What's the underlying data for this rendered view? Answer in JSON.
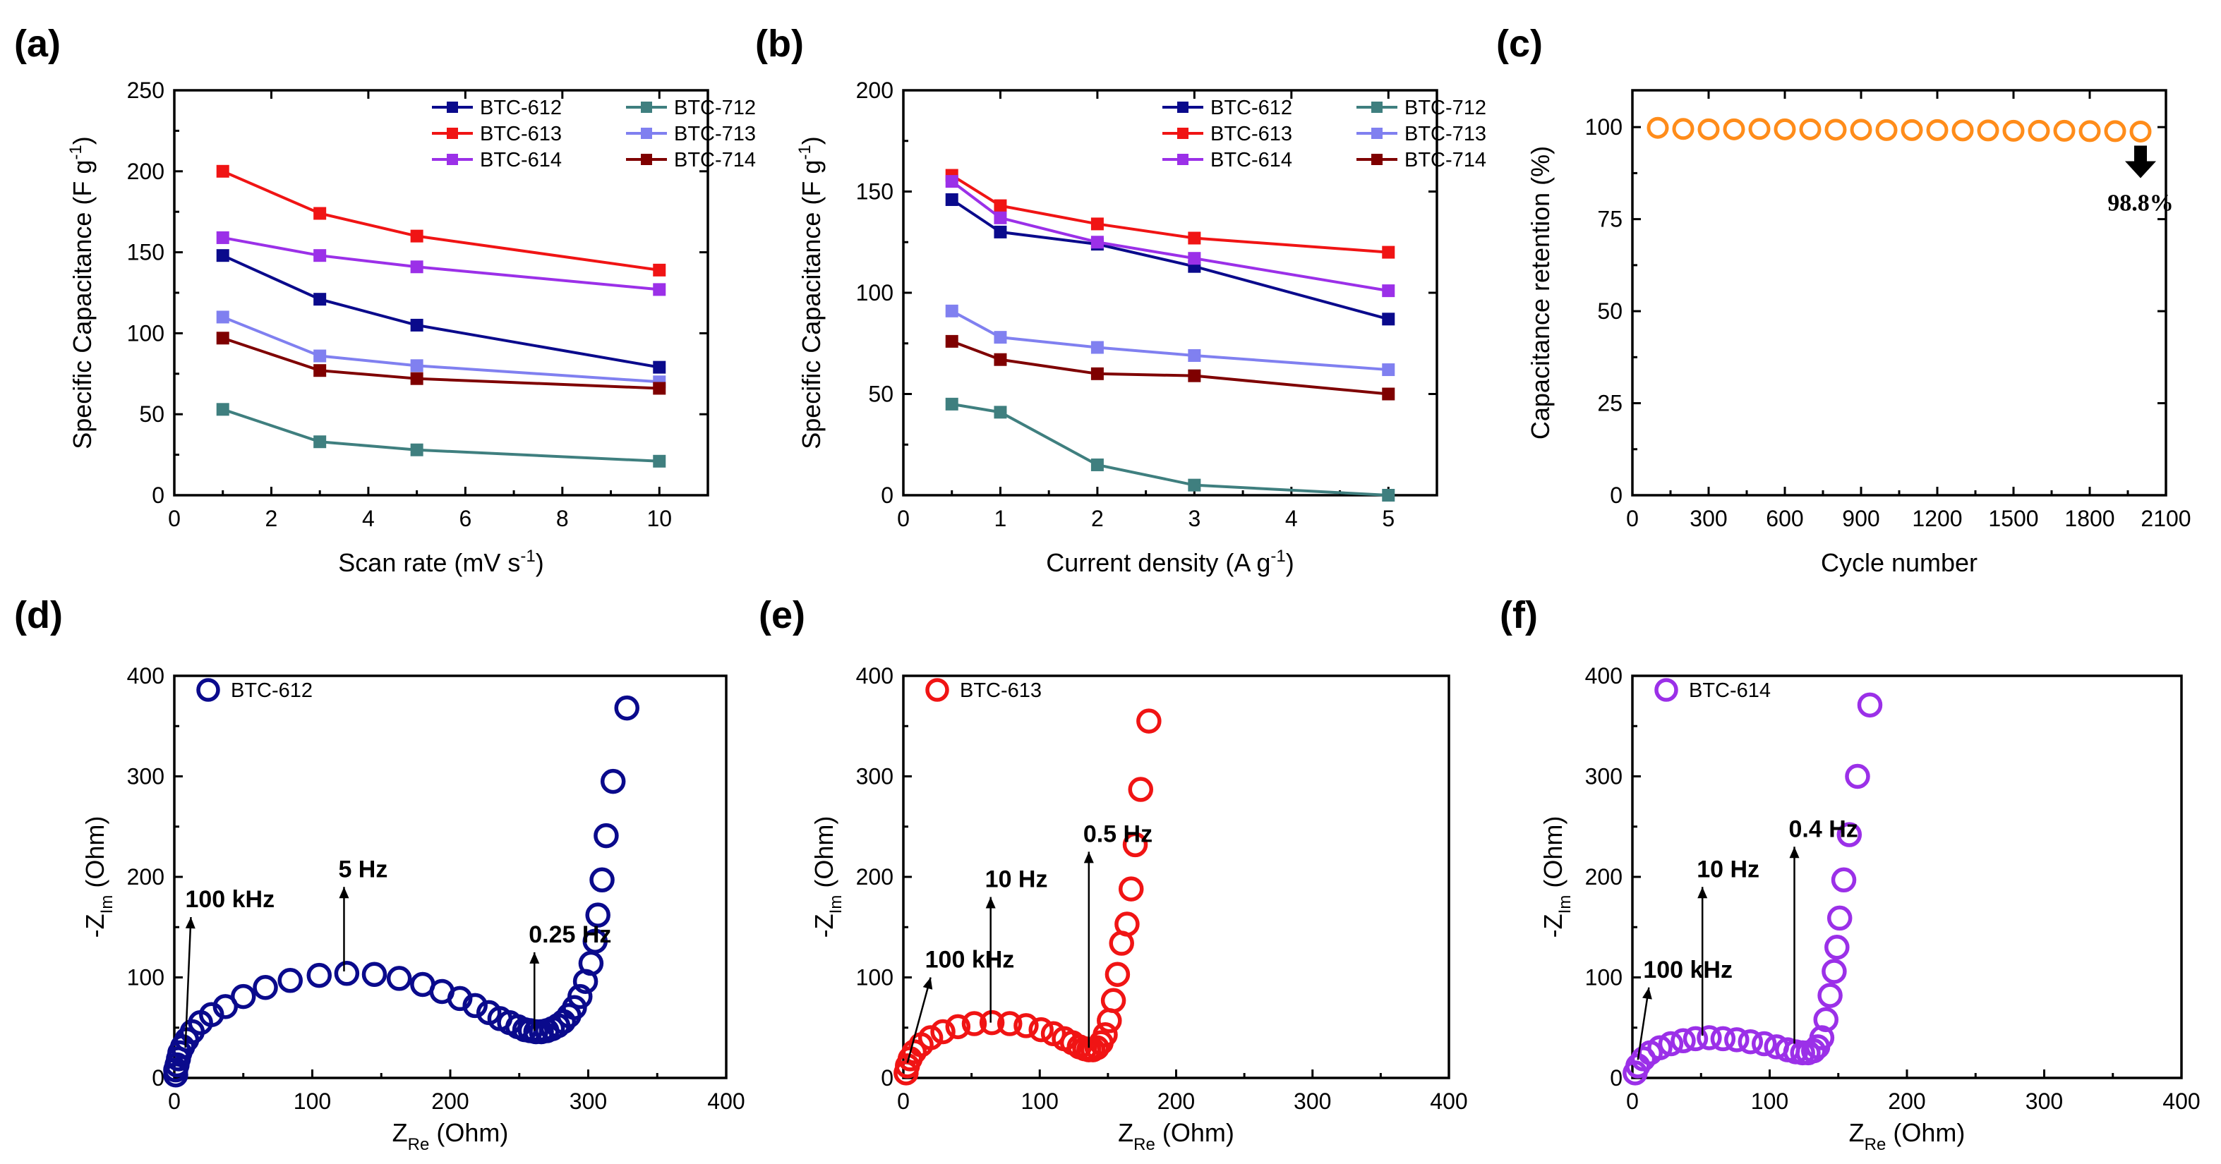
{
  "colors": {
    "BTC-612": "#0a0a8c",
    "BTC-613": "#f01414",
    "BTC-614": "#9b30e8",
    "BTC-712": "#3f7f7f",
    "BTC-713": "#8080f0",
    "BTC-714": "#7f0000",
    "retention": "#ff8c1a"
  },
  "chart_data": [
    {
      "panel": "(a)",
      "type": "line",
      "xlabel": "Scan rate (mV s",
      "xlabel_sup": "-1",
      "xlabel_end": ")",
      "ylabel": "Specific Capacitance (F g",
      "ylabel_sup": "-1",
      "ylabel_end": ")",
      "xlim": [
        0,
        11
      ],
      "ylim": [
        0,
        250
      ],
      "xticks": [
        0,
        2,
        4,
        6,
        8,
        10
      ],
      "yticks": [
        0,
        50,
        100,
        150,
        200,
        250
      ],
      "x": [
        1,
        3,
        5,
        10
      ],
      "series": [
        {
          "name": "BTC-612",
          "values": [
            148,
            121,
            105,
            79
          ]
        },
        {
          "name": "BTC-613",
          "values": [
            200,
            174,
            160,
            139
          ]
        },
        {
          "name": "BTC-614",
          "values": [
            159,
            148,
            141,
            127
          ]
        },
        {
          "name": "BTC-712",
          "values": [
            53,
            33,
            28,
            21
          ]
        },
        {
          "name": "BTC-713",
          "values": [
            110,
            86,
            80,
            70
          ]
        },
        {
          "name": "BTC-714",
          "values": [
            97,
            77,
            72,
            66
          ]
        }
      ]
    },
    {
      "panel": "(b)",
      "type": "line",
      "xlabel": "Current density (A g",
      "xlabel_sup": "-1",
      "xlabel_end": ")",
      "ylabel": "Specific Capacitance (F g",
      "ylabel_sup": "-1",
      "ylabel_end": ")",
      "xlim": [
        0,
        5.5
      ],
      "ylim": [
        0,
        200
      ],
      "xticks": [
        0,
        1,
        2,
        3,
        4,
        5
      ],
      "yticks": [
        0,
        50,
        100,
        150,
        200
      ],
      "x": [
        0.5,
        1,
        2,
        3,
        5
      ],
      "series": [
        {
          "name": "BTC-612",
          "values": [
            146,
            130,
            124,
            113,
            87
          ]
        },
        {
          "name": "BTC-613",
          "values": [
            158,
            143,
            134,
            127,
            120
          ]
        },
        {
          "name": "BTC-614",
          "values": [
            155,
            137,
            125,
            117,
            101
          ]
        },
        {
          "name": "BTC-712",
          "values": [
            45,
            41,
            15,
            5,
            0
          ]
        },
        {
          "name": "BTC-713",
          "values": [
            91,
            78,
            73,
            69,
            62
          ]
        },
        {
          "name": "BTC-714",
          "values": [
            76,
            67,
            60,
            59,
            50
          ]
        }
      ]
    },
    {
      "panel": "(c)",
      "type": "scatter",
      "xlabel": "Cycle number",
      "ylabel": "Capacitance retention (%)",
      "xlim": [
        0,
        2100
      ],
      "ylim": [
        0,
        110
      ],
      "xticks": [
        0,
        300,
        600,
        900,
        1200,
        1500,
        1800,
        2100
      ],
      "yticks": [
        0,
        25,
        50,
        75,
        100
      ],
      "x": [
        100,
        200,
        300,
        400,
        500,
        600,
        700,
        800,
        900,
        1000,
        1100,
        1200,
        1300,
        1400,
        1500,
        1600,
        1700,
        1800,
        1900,
        2000
      ],
      "values": [
        99.8,
        99.5,
        99.4,
        99.4,
        99.5,
        99.4,
        99.4,
        99.3,
        99.3,
        99.2,
        99.2,
        99.2,
        99.1,
        99.1,
        99.0,
        99.0,
        99.0,
        98.9,
        98.9,
        98.8
      ],
      "annotation": "98.8%"
    },
    {
      "panel": "(d)",
      "type": "scatter",
      "legend": "BTC-612",
      "xlim": [
        0,
        400
      ],
      "ylim": [
        0,
        400
      ],
      "xticks": [
        0,
        100,
        200,
        300,
        400
      ],
      "yticks": [
        0,
        100,
        200,
        300,
        400
      ],
      "points": [
        [
          1,
          3
        ],
        [
          1,
          8
        ],
        [
          2,
          13
        ],
        [
          3,
          19
        ],
        [
          4,
          25
        ],
        [
          6,
          31
        ],
        [
          9,
          38
        ],
        [
          13,
          46
        ],
        [
          19,
          55
        ],
        [
          27,
          63
        ],
        [
          37,
          71
        ],
        [
          50,
          81
        ],
        [
          66,
          90
        ],
        [
          84,
          97
        ],
        [
          105,
          102
        ],
        [
          125,
          104
        ],
        [
          145,
          103
        ],
        [
          163,
          99
        ],
        [
          180,
          93
        ],
        [
          194,
          86
        ],
        [
          207,
          79
        ],
        [
          218,
          72
        ],
        [
          228,
          65
        ],
        [
          236,
          59
        ],
        [
          243,
          55
        ],
        [
          249,
          51
        ],
        [
          254,
          48
        ],
        [
          258,
          47
        ],
        [
          262,
          46
        ],
        [
          266,
          46
        ],
        [
          270,
          47
        ],
        [
          274,
          49
        ],
        [
          278,
          52
        ],
        [
          282,
          56
        ],
        [
          286,
          62
        ],
        [
          290,
          70
        ],
        [
          294,
          81
        ],
        [
          298,
          96
        ],
        [
          302,
          114
        ],
        [
          305,
          136
        ],
        [
          307,
          162
        ],
        [
          310,
          197
        ],
        [
          313,
          241
        ],
        [
          318,
          295
        ],
        [
          328,
          368
        ]
      ],
      "annotations": [
        {
          "text": "100 kHz",
          "x": 8,
          "y": 30,
          "tx": 12,
          "ty": 160
        },
        {
          "text": "5 Hz",
          "x": 123,
          "y": 106,
          "tx": 123,
          "ty": 190
        },
        {
          "text": "0.25 Hz",
          "x": 261,
          "y": 47,
          "tx": 261,
          "ty": 125
        }
      ]
    },
    {
      "panel": "(e)",
      "type": "scatter",
      "legend": "BTC-613",
      "xlim": [
        0,
        400
      ],
      "ylim": [
        0,
        400
      ],
      "xticks": [
        0,
        100,
        200,
        300,
        400
      ],
      "yticks": [
        0,
        100,
        200,
        300,
        400
      ],
      "points": [
        [
          2,
          5
        ],
        [
          3,
          12
        ],
        [
          5,
          19
        ],
        [
          8,
          26
        ],
        [
          13,
          33
        ],
        [
          20,
          40
        ],
        [
          29,
          46
        ],
        [
          40,
          51
        ],
        [
          52,
          54
        ],
        [
          65,
          55
        ],
        [
          78,
          54
        ],
        [
          90,
          52
        ],
        [
          101,
          48
        ],
        [
          110,
          44
        ],
        [
          118,
          39
        ],
        [
          124,
          35
        ],
        [
          129,
          31
        ],
        [
          133,
          29
        ],
        [
          136,
          28
        ],
        [
          139,
          28
        ],
        [
          142,
          30
        ],
        [
          145,
          35
        ],
        [
          148,
          43
        ],
        [
          151,
          57
        ],
        [
          154,
          77
        ],
        [
          157,
          103
        ],
        [
          160,
          134
        ],
        [
          164,
          153
        ],
        [
          167,
          188
        ],
        [
          170,
          232
        ],
        [
          174,
          287
        ],
        [
          180,
          355
        ]
      ],
      "annotations": [
        {
          "text": "100 kHz",
          "x": 3,
          "y": 15,
          "tx": 20,
          "ty": 100
        },
        {
          "text": "10 Hz",
          "x": 64,
          "y": 55,
          "tx": 64,
          "ty": 180
        },
        {
          "text": "0.5 Hz",
          "x": 136,
          "y": 30,
          "tx": 136,
          "ty": 225
        }
      ]
    },
    {
      "panel": "(f)",
      "type": "scatter",
      "legend": "BTC-614",
      "xlim": [
        0,
        400
      ],
      "ylim": [
        0,
        400
      ],
      "xticks": [
        0,
        100,
        200,
        300,
        400
      ],
      "yticks": [
        0,
        100,
        200,
        300,
        400
      ],
      "points": [
        [
          2,
          5
        ],
        [
          4,
          12
        ],
        [
          8,
          19
        ],
        [
          13,
          25
        ],
        [
          20,
          30
        ],
        [
          28,
          34
        ],
        [
          37,
          37
        ],
        [
          46,
          39
        ],
        [
          56,
          40
        ],
        [
          66,
          39
        ],
        [
          76,
          38
        ],
        [
          86,
          36
        ],
        [
          96,
          34
        ],
        [
          105,
          31
        ],
        [
          113,
          28
        ],
        [
          119,
          26
        ],
        [
          124,
          25
        ],
        [
          128,
          25
        ],
        [
          132,
          27
        ],
        [
          135,
          31
        ],
        [
          138,
          40
        ],
        [
          141,
          58
        ],
        [
          144,
          82
        ],
        [
          147,
          106
        ],
        [
          149,
          130
        ],
        [
          151,
          159
        ],
        [
          154,
          197
        ],
        [
          158,
          242
        ],
        [
          164,
          300
        ],
        [
          173,
          371
        ]
      ],
      "annotations": [
        {
          "text": "100 kHz",
          "x": 4,
          "y": 18,
          "tx": 12,
          "ty": 90
        },
        {
          "text": "10 Hz",
          "x": 51,
          "y": 42,
          "tx": 51,
          "ty": 190
        },
        {
          "text": "0.4 Hz",
          "x": 118,
          "y": 34,
          "tx": 118,
          "ty": 230
        }
      ]
    }
  ],
  "panel_labels": [
    "(a)",
    "(b)",
    "(c)",
    "(d)",
    "(e)",
    "(f)"
  ],
  "nyquist_axes": {
    "xlabel_main": "Z",
    "xlabel_sub": "Re",
    "xlabel_end": " (Ohm)",
    "ylabel_main": "-Z",
    "ylabel_sub": "Im",
    "ylabel_end": " (Ohm)"
  }
}
